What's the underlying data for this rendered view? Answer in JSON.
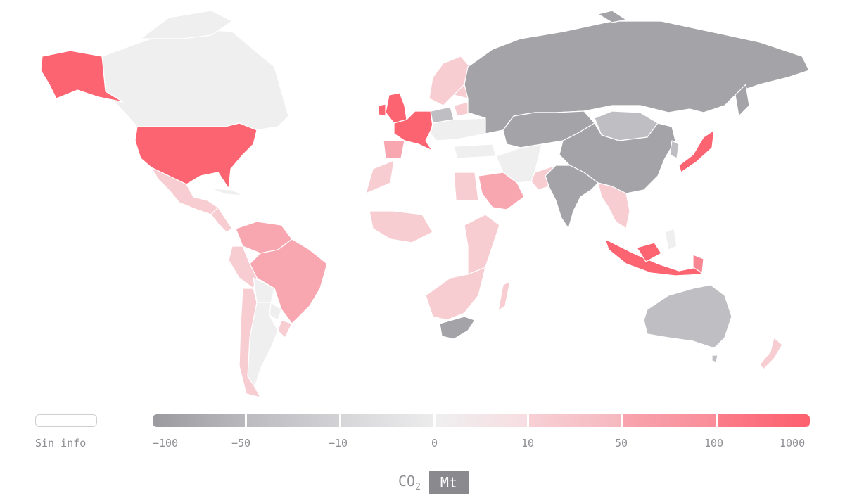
{
  "palette": {
    "neg100": "#a4a4a8",
    "neg50": "#bfbfc3",
    "neg10": "#dcdcde",
    "neutral": "#efeff0",
    "pos10": "#f7cdd2",
    "pos50": "#f8a6b0",
    "pos100": "#fa8592",
    "pos1000": "#fc6472",
    "noinfo": "#ffffff"
  },
  "legend": {
    "no_info": "Sin info",
    "ticks": [
      "−100",
      "−50",
      "−10",
      "0",
      "10",
      "50",
      "100",
      "1000"
    ]
  },
  "unit": {
    "co2_main": "CO",
    "co2_sub": "2",
    "selected": "Mt"
  }
}
